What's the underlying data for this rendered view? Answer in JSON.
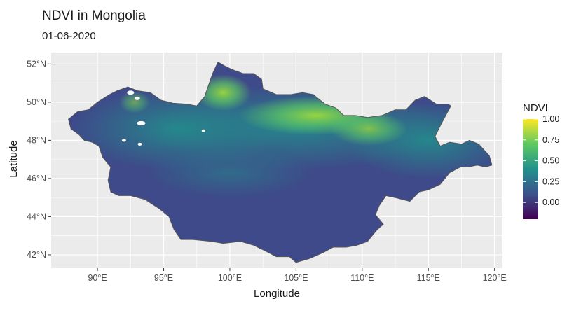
{
  "chart_data": {
    "type": "heatmap",
    "title": "NDVI in Mongolia",
    "subtitle": "01-06-2020",
    "xlabel": "Longitude",
    "ylabel": "Latitude",
    "xlim": [
      86.5,
      120.6
    ],
    "ylim": [
      41.3,
      52.6
    ],
    "x_ticks": [
      {
        "value": 90,
        "label": "90°E"
      },
      {
        "value": 95,
        "label": "95°E"
      },
      {
        "value": 100,
        "label": "100°E"
      },
      {
        "value": 105,
        "label": "105°E"
      },
      {
        "value": 110,
        "label": "110°E"
      },
      {
        "value": 115,
        "label": "115°E"
      },
      {
        "value": 120,
        "label": "120°E"
      }
    ],
    "y_ticks": [
      {
        "value": 42,
        "label": "42°N"
      },
      {
        "value": 44,
        "label": "44°N"
      },
      {
        "value": 46,
        "label": "46°N"
      },
      {
        "value": 48,
        "label": "48°N"
      },
      {
        "value": 50,
        "label": "50°N"
      },
      {
        "value": 52,
        "label": "52°N"
      }
    ],
    "grid": true,
    "legend": {
      "title": "NDVI",
      "placement": "right",
      "range": [
        -0.2,
        1.0
      ],
      "ticks": [
        {
          "value": 1.0,
          "label": "1.00"
        },
        {
          "value": 0.75,
          "label": "0.75"
        },
        {
          "value": 0.5,
          "label": "0.50"
        },
        {
          "value": 0.25,
          "label": "0.25"
        },
        {
          "value": 0.0,
          "label": "0.00"
        }
      ],
      "colors": [
        "#440154",
        "#3b528b",
        "#21918c",
        "#5ec962",
        "#fde725"
      ]
    },
    "panel_background": "#ebebeb",
    "grid_color": "#ffffff",
    "outline_color": "#555555",
    "region_boundary": [
      [
        87.8,
        49.1
      ],
      [
        88.5,
        49.5
      ],
      [
        89.3,
        49.6
      ],
      [
        90.0,
        50.0
      ],
      [
        90.9,
        50.4
      ],
      [
        91.5,
        50.6
      ],
      [
        92.3,
        50.8
      ],
      [
        93.0,
        50.6
      ],
      [
        94.0,
        50.5
      ],
      [
        94.8,
        50.1
      ],
      [
        95.7,
        49.95
      ],
      [
        96.7,
        49.9
      ],
      [
        97.5,
        49.8
      ],
      [
        98.1,
        50.3
      ],
      [
        98.4,
        50.9
      ],
      [
        98.7,
        51.5
      ],
      [
        99.1,
        52.1
      ],
      [
        99.6,
        51.9
      ],
      [
        100.2,
        51.7
      ],
      [
        101.0,
        51.5
      ],
      [
        101.8,
        51.5
      ],
      [
        102.4,
        51.2
      ],
      [
        102.5,
        50.7
      ],
      [
        103.5,
        50.4
      ],
      [
        104.6,
        50.4
      ],
      [
        105.5,
        50.5
      ],
      [
        106.3,
        50.4
      ],
      [
        107.2,
        49.9
      ],
      [
        108.0,
        49.7
      ],
      [
        108.6,
        49.3
      ],
      [
        109.5,
        49.3
      ],
      [
        110.4,
        49.2
      ],
      [
        111.5,
        49.3
      ],
      [
        112.5,
        49.6
      ],
      [
        113.3,
        49.6
      ],
      [
        114.0,
        50.1
      ],
      [
        114.7,
        50.3
      ],
      [
        115.6,
        49.9
      ],
      [
        116.5,
        49.9
      ],
      [
        116.7,
        49.8
      ],
      [
        116.0,
        48.9
      ],
      [
        115.5,
        48.2
      ],
      [
        115.9,
        47.7
      ],
      [
        116.6,
        47.9
      ],
      [
        117.5,
        47.8
      ],
      [
        118.1,
        48.0
      ],
      [
        118.8,
        47.8
      ],
      [
        119.6,
        47.2
      ],
      [
        119.8,
        46.7
      ],
      [
        119.3,
        46.6
      ],
      [
        118.7,
        46.7
      ],
      [
        118.0,
        46.6
      ],
      [
        117.4,
        46.6
      ],
      [
        116.6,
        46.3
      ],
      [
        115.9,
        45.7
      ],
      [
        115.0,
        45.4
      ],
      [
        114.3,
        45.3
      ],
      [
        113.6,
        44.8
      ],
      [
        112.5,
        45.0
      ],
      [
        111.8,
        45.1
      ],
      [
        111.3,
        44.6
      ],
      [
        111.0,
        44.1
      ],
      [
        111.6,
        43.6
      ],
      [
        111.1,
        43.3
      ],
      [
        110.4,
        42.7
      ],
      [
        109.6,
        42.5
      ],
      [
        108.8,
        42.4
      ],
      [
        107.8,
        42.4
      ],
      [
        107.0,
        42.1
      ],
      [
        106.0,
        41.8
      ],
      [
        105.0,
        41.6
      ],
      [
        104.5,
        41.9
      ],
      [
        103.5,
        41.9
      ],
      [
        102.7,
        42.2
      ],
      [
        101.8,
        42.5
      ],
      [
        100.8,
        42.7
      ],
      [
        99.5,
        42.6
      ],
      [
        98.6,
        42.7
      ],
      [
        97.2,
        42.8
      ],
      [
        96.3,
        42.8
      ],
      [
        95.8,
        43.3
      ],
      [
        95.4,
        44.0
      ],
      [
        94.7,
        44.4
      ],
      [
        93.6,
        44.9
      ],
      [
        92.5,
        45.1
      ],
      [
        91.6,
        45.1
      ],
      [
        91.0,
        45.3
      ],
      [
        90.8,
        45.9
      ],
      [
        91.0,
        46.6
      ],
      [
        90.4,
        47.1
      ],
      [
        90.1,
        47.7
      ],
      [
        89.6,
        47.9
      ],
      [
        89.0,
        48.0
      ],
      [
        88.6,
        48.3
      ],
      [
        88.0,
        48.6
      ],
      [
        87.8,
        49.1
      ]
    ]
  }
}
